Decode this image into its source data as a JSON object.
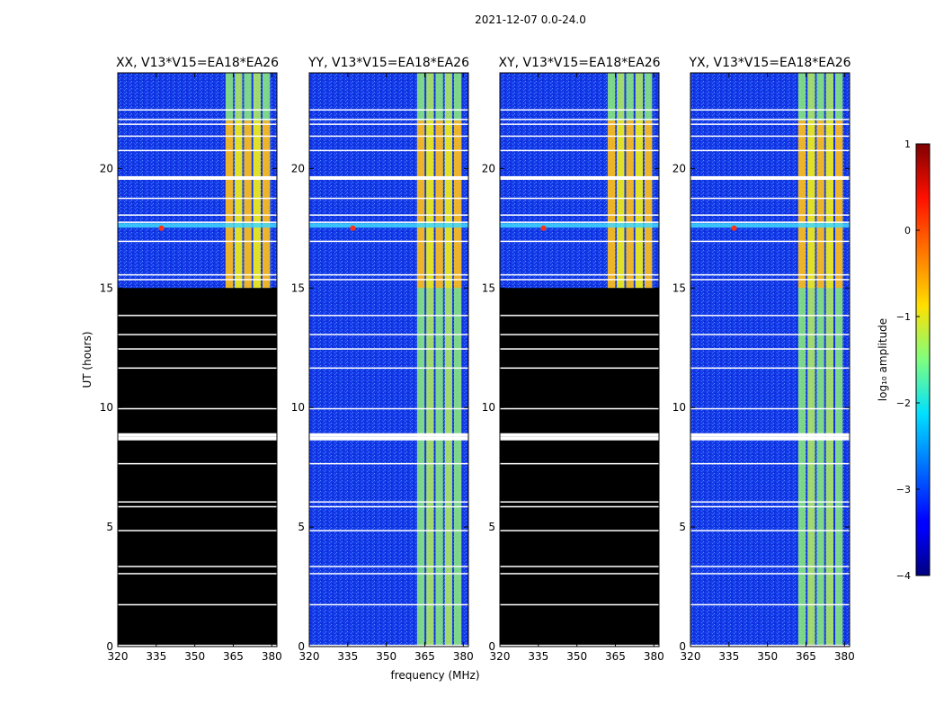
{
  "figure": {
    "suptitle": "2021-12-07 0.0-24.0",
    "ylabel": "UT (hours)",
    "xlabel": "frequency (MHz)"
  },
  "chart_data": {
    "type": "heatmap",
    "x_ticks": [
      320,
      335,
      350,
      365,
      380
    ],
    "y_ticks": [
      0,
      5,
      10,
      15,
      20
    ],
    "xlim": [
      320,
      382
    ],
    "ylim": [
      0,
      24
    ],
    "panels": [
      {
        "title": "XX, V13*V15=EA18*EA26",
        "data_valid_from_hours": 15
      },
      {
        "title": "YY, V13*V15=EA18*EA26",
        "data_valid_from_hours": 0
      },
      {
        "title": "XY, V13*V15=EA18*EA26",
        "data_valid_from_hours": 15
      },
      {
        "title": "YX, V13*V15=EA18*EA26",
        "data_valid_from_hours": 0
      }
    ],
    "colorbar": {
      "label": "log₁₀ amplitude",
      "range": [
        -4,
        1
      ],
      "ticks": [
        1,
        0,
        -1,
        -2,
        -3,
        -4
      ],
      "tick_labels": [
        "1",
        "0",
        "−1",
        "−2",
        "−3",
        "−4"
      ],
      "colormap": "jet"
    },
    "flagged_rows_hours": [
      0.05,
      1.75,
      3.05,
      3.35,
      4.85,
      5.85,
      6.05,
      7.65,
      8.7,
      8.85,
      9.95,
      11.65,
      12.45,
      13.05,
      13.85,
      15.35,
      15.55,
      16.95,
      17.75,
      18.05,
      18.75,
      19.6,
      20.75,
      21.35,
      21.85,
      22.05,
      22.45
    ],
    "bright_band_MHz": [
      362,
      380
    ]
  }
}
